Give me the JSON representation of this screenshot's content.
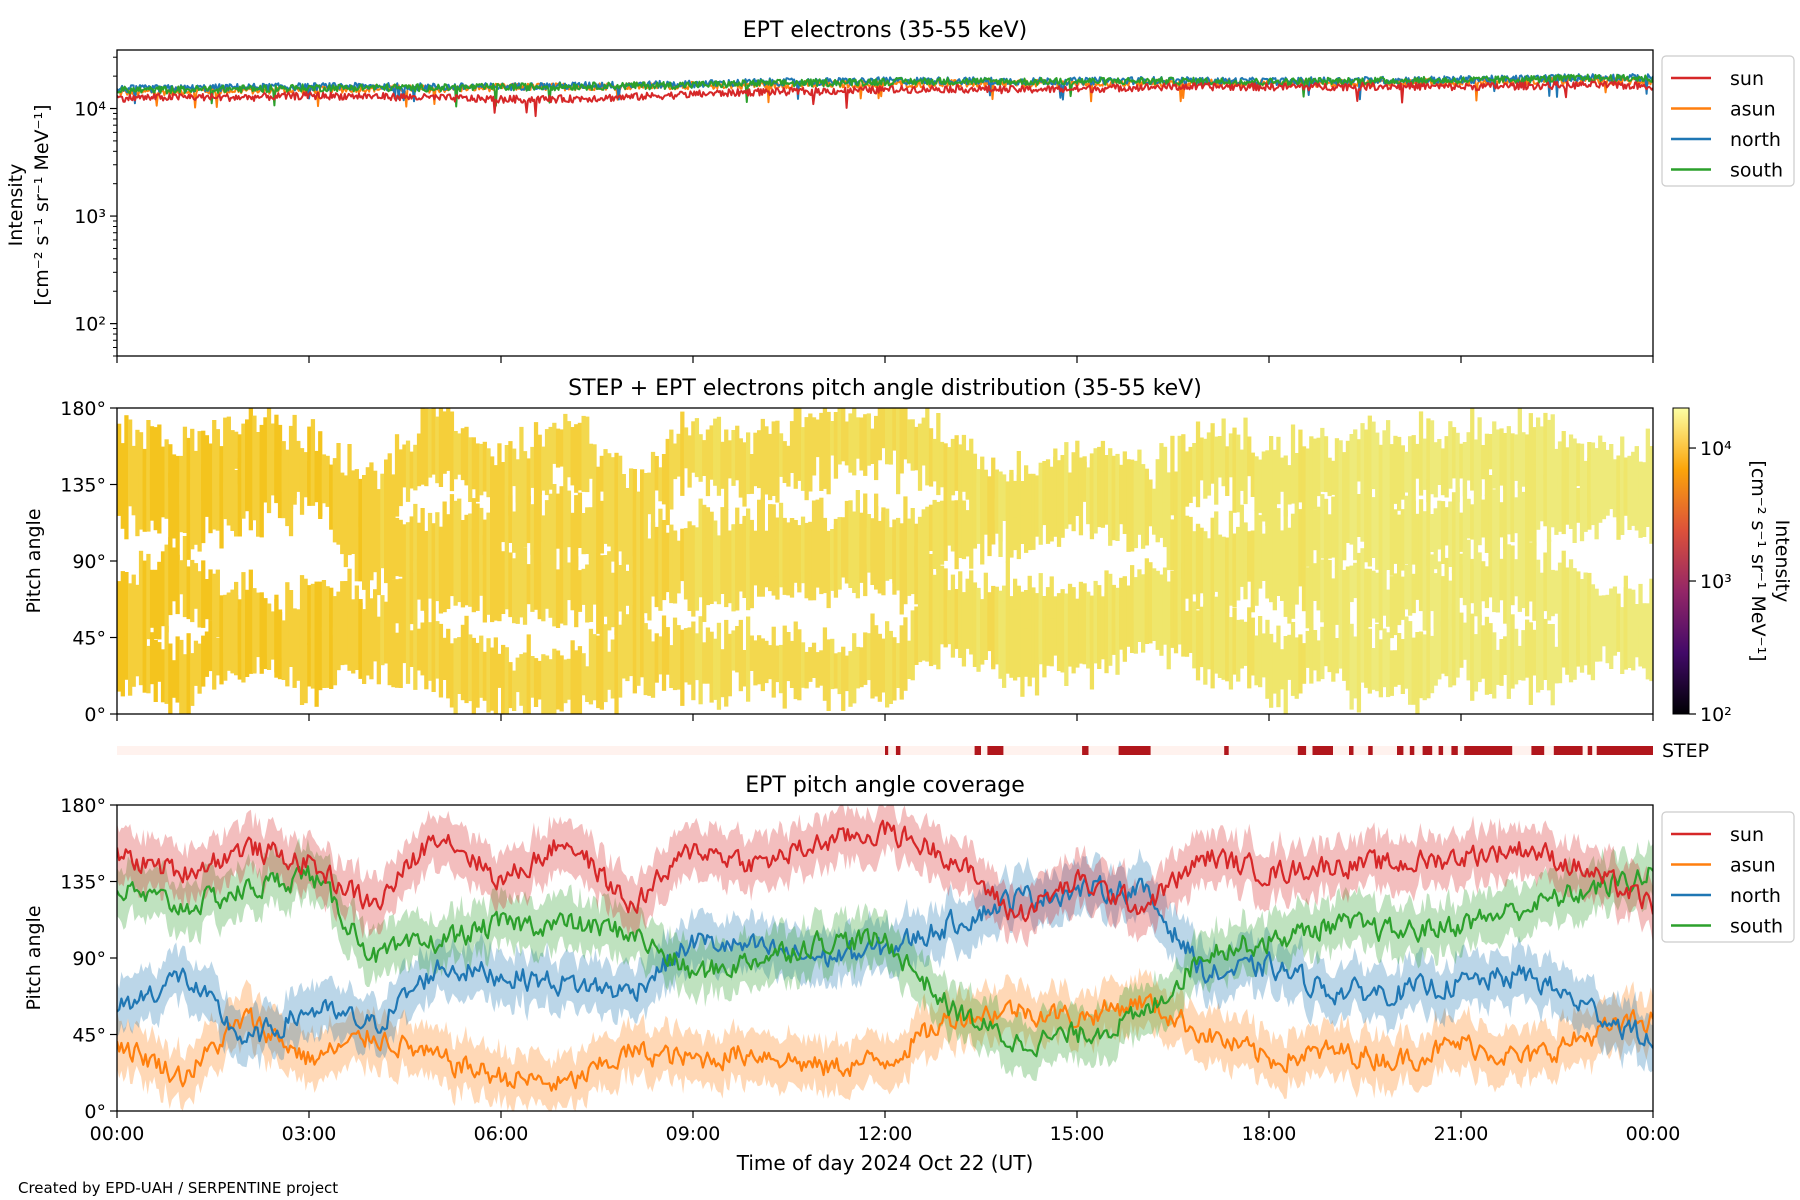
{
  "chart_data": [
    {
      "type": "line",
      "title": "EPT electrons (35-55 keV)",
      "xlabel": "",
      "ylabel": "Intensity",
      "ylabel_unit": "[cm⁻² s⁻¹ sr⁻¹ MeV⁻¹]",
      "yscale": "log",
      "ylim": [
        50,
        35000
      ],
      "y_ticks": [
        100,
        1000,
        10000
      ],
      "y_tick_labels": [
        "10²",
        "10³",
        "10⁴"
      ],
      "x_range_hours": [
        0,
        24
      ],
      "legend_position": "outside-right-top",
      "series": [
        {
          "name": "sun",
          "color": "#d62728",
          "values": [
            12500,
            12800,
            12700,
            13200,
            13000,
            12600,
            12200,
            12300,
            12800,
            13600,
            14300,
            14500,
            15000,
            15300,
            15000,
            15200,
            15800,
            16000,
            15900,
            16000,
            16200,
            15900,
            16300,
            16600,
            16200
          ]
        },
        {
          "name": "asun",
          "color": "#ff7f0e",
          "values": [
            14000,
            14600,
            14800,
            15000,
            15400,
            15200,
            15800,
            16000,
            16200,
            16400,
            16600,
            16800,
            17000,
            17100,
            17000,
            17300,
            17200,
            17400,
            17100,
            17300,
            17600,
            17700,
            17900,
            18300,
            18000
          ]
        },
        {
          "name": "north",
          "color": "#1f77b4",
          "values": [
            15200,
            15400,
            15800,
            16000,
            16100,
            15900,
            16000,
            16300,
            16600,
            16900,
            17600,
            17800,
            18100,
            18200,
            18000,
            18000,
            18300,
            18100,
            17900,
            18200,
            18400,
            18600,
            19000,
            19600,
            19300
          ]
        },
        {
          "name": "south",
          "color": "#2ca02c",
          "values": [
            14800,
            15000,
            15300,
            15600,
            15700,
            15600,
            15800,
            16100,
            16300,
            16600,
            17100,
            17400,
            17800,
            18000,
            17800,
            17900,
            18100,
            17900,
            17700,
            18000,
            18200,
            18300,
            18700,
            19200,
            19000
          ]
        }
      ]
    },
    {
      "type": "heatmap",
      "title": "STEP + EPT electrons pitch angle distribution (35-55 keV)",
      "xlabel": "",
      "ylabel": "Pitch angle",
      "ylim": [
        0,
        180
      ],
      "y_tick_labels": [
        "0°",
        "45°",
        "90°",
        "135°",
        "180°"
      ],
      "colorbar_label": "Intensity",
      "colorbar_unit": "[cm⁻² s⁻¹ sr⁻¹ MeV⁻¹]",
      "colorbar_scale": "log",
      "colorbar_range": [
        100,
        20000
      ],
      "colorbar_tick_labels": [
        "10²",
        "10³",
        "10⁴"
      ],
      "colormap": "inferno"
    },
    {
      "type": "heatmap",
      "title": "",
      "label": "STEP",
      "x_range_hours": [
        0,
        24
      ],
      "active_intervals_hours": [
        [
          12.0,
          12.05
        ],
        [
          12.17,
          12.24
        ],
        [
          13.4,
          13.5
        ],
        [
          13.6,
          13.85
        ],
        [
          15.08,
          15.18
        ],
        [
          15.65,
          16.15
        ],
        [
          17.3,
          17.37
        ],
        [
          18.45,
          18.58
        ],
        [
          18.68,
          19.0
        ],
        [
          19.25,
          19.32
        ],
        [
          19.55,
          19.62
        ],
        [
          20.0,
          20.1
        ],
        [
          20.2,
          20.27
        ],
        [
          20.4,
          20.55
        ],
        [
          20.65,
          20.72
        ],
        [
          20.85,
          20.95
        ],
        [
          21.05,
          21.8
        ],
        [
          22.1,
          22.3
        ],
        [
          22.45,
          22.9
        ],
        [
          22.98,
          23.05
        ],
        [
          23.12,
          24.0
        ]
      ]
    },
    {
      "type": "line",
      "title": "EPT pitch angle coverage",
      "xlabel": "Time of day 2024 Oct 22 (UT)",
      "ylabel": "Pitch angle",
      "ylim": [
        0,
        180
      ],
      "y_tick_labels": [
        "0°",
        "45°",
        "90°",
        "135°",
        "180°"
      ],
      "x_tick_labels": [
        "00:00",
        "03:00",
        "06:00",
        "09:00",
        "12:00",
        "15:00",
        "18:00",
        "21:00",
        "00:00"
      ],
      "x_range_hours": [
        0,
        24
      ],
      "legend_position": "outside-right-top",
      "series": [
        {
          "name": "sun",
          "color": "#d62728",
          "values": [
            150,
            140,
            155,
            145,
            120,
            165,
            135,
            160,
            120,
            155,
            145,
            158,
            165,
            150,
            115,
            135,
            120,
            150,
            140,
            145,
            145,
            150,
            155,
            140,
            120
          ]
        },
        {
          "name": "asun",
          "color": "#ff7f0e",
          "values": [
            40,
            20,
            55,
            30,
            45,
            30,
            20,
            15,
            35,
            30,
            35,
            25,
            30,
            55,
            60,
            55,
            65,
            45,
            30,
            35,
            30,
            40,
            30,
            45,
            55
          ]
        },
        {
          "name": "north",
          "color": "#1f77b4",
          "values": [
            60,
            80,
            40,
            60,
            50,
            85,
            80,
            75,
            70,
            100,
            95,
            90,
            95,
            110,
            125,
            130,
            130,
            80,
            85,
            70,
            70,
            75,
            80,
            60,
            40
          ]
        },
        {
          "name": "south",
          "color": "#2ca02c",
          "values": [
            130,
            120,
            130,
            140,
            90,
            100,
            110,
            110,
            105,
            80,
            90,
            100,
            100,
            60,
            40,
            45,
            55,
            95,
            100,
            110,
            105,
            110,
            120,
            130,
            140
          ]
        }
      ]
    }
  ],
  "footer": {
    "credit": "Created by EPD-UAH / SERPENTINE project"
  }
}
